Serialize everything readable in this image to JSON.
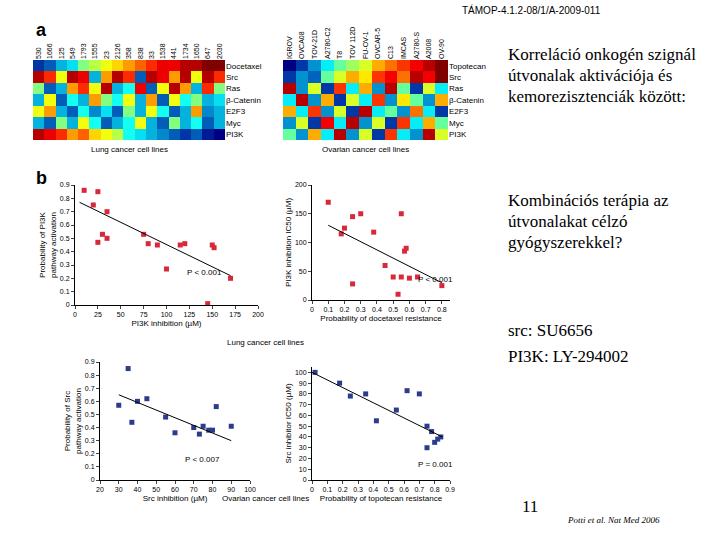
{
  "slide": {
    "header": "TÁMOP-4.1.2-08/1/A-2009-011",
    "panel_a": "a",
    "panel_b": "b",
    "text_1": "Korreláció onkogén szignál útvonalak aktivációja és kemorezisztenciák között:",
    "text_2": "Kombinációs terápia az útvonalakat célzó gyógyszerekkel?",
    "text_3": "src: SU6656",
    "text_4": "PI3K: LY-294002",
    "page_number": "11",
    "citation": "Potti et al. Nat Med 2006",
    "panel_b_captions": [
      "Lung cancer cell lines",
      "Ovarian cancer cell lines"
    ]
  },
  "chart_data": [
    {
      "type": "heatmap",
      "xlabel": "Lung cancer cell lines",
      "categories": [
        "530",
        "1666",
        "125",
        "549",
        "1793",
        "1555",
        "23",
        "2126",
        "358",
        "838",
        "33",
        "1538",
        "441",
        "1734",
        "1650",
        "647",
        "2030"
      ],
      "rows": [
        "Docetaxel",
        "Src",
        "Ras",
        "β-Catenin",
        "E2F3",
        "Myc",
        "PI3K"
      ],
      "z": [
        [
          0.15,
          0.2,
          0.3,
          0.35,
          0.5,
          0.55,
          0.6,
          0.65,
          0.7,
          0.75,
          0.8,
          0.85,
          0.85,
          0.9,
          0.9,
          0.95,
          0.95
        ],
        [
          0.9,
          0.8,
          0.6,
          0.9,
          0.85,
          0.3,
          0.7,
          0.9,
          0.8,
          0.2,
          0.9,
          0.85,
          0.7,
          0.9,
          0.6,
          0.9,
          0.8
        ],
        [
          0.5,
          0.2,
          0.3,
          0.7,
          0.8,
          0.6,
          0.9,
          0.3,
          0.4,
          0.85,
          0.2,
          0.6,
          0.9,
          0.7,
          0.3,
          0.8,
          0.5
        ],
        [
          0.3,
          0.6,
          0.2,
          0.4,
          0.3,
          0.7,
          0.5,
          0.4,
          0.6,
          0.3,
          0.7,
          0.2,
          0.6,
          0.4,
          0.5,
          0.3,
          0.35
        ],
        [
          0.6,
          0.7,
          0.3,
          0.2,
          0.4,
          0.25,
          0.35,
          0.2,
          0.5,
          0.3,
          0.6,
          0.4,
          0.2,
          0.3,
          0.7,
          0.25,
          0.3
        ],
        [
          0.3,
          0.2,
          0.5,
          0.3,
          0.6,
          0.4,
          0.2,
          0.3,
          0.4,
          0.6,
          0.3,
          0.2,
          0.5,
          0.3,
          0.4,
          0.2,
          0.3
        ],
        [
          0.9,
          0.85,
          0.8,
          0.7,
          0.75,
          0.65,
          0.6,
          0.55,
          0.4,
          0.35,
          0.3,
          0.25,
          0.2,
          0.15,
          0.2,
          0.1,
          0.05
        ]
      ]
    },
    {
      "type": "heatmap",
      "xlabel": "Ovarian cancer cell lines",
      "categories": [
        "IGROV",
        "OVCA08",
        "TOV-21D",
        "A2780-C2",
        "T8",
        "TOV 112D",
        "FU-OV-1",
        "OVCAR-5",
        "C13",
        "IMCAS",
        "A2780-S",
        "A2008",
        "OV-90"
      ],
      "rows": [
        "Topotecan",
        "Src",
        "Ras",
        "β-Catenin",
        "E2F3",
        "Myc",
        "PI3K"
      ],
      "z": [
        [
          0.1,
          0.2,
          0.3,
          0.4,
          0.5,
          0.55,
          0.6,
          0.7,
          0.75,
          0.8,
          0.85,
          0.9,
          0.95
        ],
        [
          0.2,
          0.3,
          0.25,
          0.5,
          0.6,
          0.7,
          0.65,
          0.8,
          0.85,
          0.75,
          0.9,
          0.85,
          0.95
        ],
        [
          0.9,
          0.3,
          0.6,
          0.2,
          0.8,
          0.4,
          0.7,
          0.3,
          0.9,
          0.5,
          0.2,
          0.6,
          0.4
        ],
        [
          0.4,
          0.9,
          0.3,
          0.7,
          0.2,
          0.6,
          0.4,
          0.8,
          0.3,
          0.65,
          0.5,
          0.3,
          0.7
        ],
        [
          0.7,
          0.4,
          0.8,
          0.3,
          0.6,
          0.2,
          0.9,
          0.4,
          0.5,
          0.3,
          0.75,
          0.4,
          0.2
        ],
        [
          0.3,
          0.6,
          0.2,
          0.85,
          0.4,
          0.9,
          0.3,
          0.6,
          0.2,
          0.8,
          0.4,
          0.7,
          0.5
        ],
        [
          0.5,
          0.3,
          0.7,
          0.4,
          0.9,
          0.3,
          0.6,
          0.2,
          0.8,
          0.4,
          0.3,
          0.9,
          0.6
        ]
      ]
    },
    {
      "type": "scatter",
      "xlabel": "PI3K inhibition (µM)",
      "ylabel": "Probability of PI3K\npathway activation",
      "xlim": [
        0,
        200
      ],
      "xticks": [
        0,
        25,
        50,
        75,
        100,
        125,
        150,
        175,
        200
      ],
      "ylim": [
        0,
        0.9
      ],
      "yticks": [
        0,
        0.1,
        0.2,
        0.3,
        0.4,
        0.5,
        0.6,
        0.7,
        0.8,
        0.9
      ],
      "annotations": [
        "P < 0.001"
      ],
      "series": [
        {
          "type": "scatter",
          "marker": "square",
          "color": "#d8283a",
          "x": [
            10,
            25,
            20,
            35,
            25,
            30,
            35,
            75,
            80,
            90,
            100,
            115,
            120,
            150,
            152,
            145,
            170
          ],
          "values": [
            0.86,
            0.85,
            0.75,
            0.7,
            0.47,
            0.53,
            0.5,
            0.53,
            0.46,
            0.45,
            0.27,
            0.45,
            0.46,
            0.45,
            0.43,
            0.01,
            0.2
          ]
        },
        {
          "type": "line",
          "color": "#000000",
          "x": [
            5,
            170
          ],
          "values": [
            0.77,
            0.22
          ]
        }
      ]
    },
    {
      "type": "scatter",
      "xlabel": "Probability of docetaxel resistance",
      "ylabel": "PI3K inhibition IC50 (µM)",
      "xlim": [
        0,
        0.85
      ],
      "xticks": [
        0,
        0.1,
        0.2,
        0.3,
        0.4,
        0.5,
        0.6,
        0.7,
        0.8
      ],
      "ylim": [
        0,
        200
      ],
      "yticks": [
        0,
        50,
        100,
        150,
        200
      ],
      "annotations": [
        "P < 0.001"
      ],
      "series": [
        {
          "type": "scatter",
          "marker": "square",
          "color": "#d8283a",
          "x": [
            0.1,
            0.18,
            0.2,
            0.25,
            0.3,
            0.38,
            0.25,
            0.55,
            0.57,
            0.58,
            0.45,
            0.5,
            0.55,
            0.53,
            0.6,
            0.65,
            0.8
          ],
          "values": [
            170,
            115,
            125,
            145,
            150,
            118,
            28,
            150,
            85,
            90,
            60,
            40,
            40,
            10,
            38,
            40,
            25
          ]
        },
        {
          "type": "line",
          "color": "#000000",
          "x": [
            0.1,
            0.8
          ],
          "values": [
            130,
            30
          ]
        }
      ]
    },
    {
      "type": "scatter",
      "xlabel": "Src inhibition (µM)",
      "ylabel": "Probability of Src\npathway activation",
      "xlim": [
        20,
        100
      ],
      "xticks": [
        20,
        30,
        40,
        50,
        60,
        70,
        80,
        90,
        100
      ],
      "ylim": [
        0,
        0.9
      ],
      "yticks": [
        0,
        0.1,
        0.2,
        0.3,
        0.4,
        0.5,
        0.6,
        0.7,
        0.8,
        0.9
      ],
      "annotations": [
        "P < 0.007"
      ],
      "series": [
        {
          "type": "scatter",
          "marker": "square",
          "color": "#2b3c8c",
          "x": [
            30,
            35,
            37,
            40,
            45,
            55,
            60,
            70,
            75,
            73,
            78,
            80,
            82,
            90
          ],
          "values": [
            0.57,
            0.85,
            0.44,
            0.6,
            0.62,
            0.48,
            0.36,
            0.4,
            0.41,
            0.35,
            0.38,
            0.38,
            0.56,
            0.41
          ]
        },
        {
          "type": "line",
          "color": "#000000",
          "x": [
            30,
            90
          ],
          "values": [
            0.65,
            0.3
          ]
        }
      ]
    },
    {
      "type": "scatter",
      "xlabel": "Probability of topotecan resistance",
      "ylabel": "Src inhibitor IC50 (µM)",
      "xlim": [
        0,
        0.9
      ],
      "xticks": [
        0,
        0.1,
        0.2,
        0.3,
        0.4,
        0.5,
        0.6,
        0.7,
        0.8,
        0.9
      ],
      "ylim": [
        0,
        105
      ],
      "yticks": [
        0,
        10,
        20,
        30,
        40,
        50,
        60,
        70,
        80,
        90,
        100
      ],
      "annotations": [
        "P = 0.001"
      ],
      "series": [
        {
          "type": "scatter",
          "marker": "square",
          "color": "#2b3c8c",
          "x": [
            0.02,
            0.18,
            0.25,
            0.35,
            0.42,
            0.55,
            0.62,
            0.7,
            0.75,
            0.78,
            0.8,
            0.82,
            0.84,
            0.75
          ],
          "values": [
            100,
            90,
            78,
            80,
            55,
            65,
            83,
            80,
            50,
            45,
            35,
            38,
            40,
            30
          ]
        },
        {
          "type": "line",
          "color": "#000000",
          "x": [
            0,
            0.85
          ],
          "values": [
            100,
            40
          ]
        }
      ]
    }
  ]
}
